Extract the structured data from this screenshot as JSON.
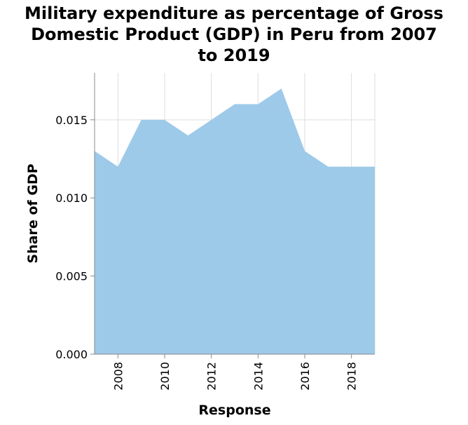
{
  "chart_data": {
    "type": "area",
    "title_lines": [
      "Military expenditure as percentage of Gross",
      "Domestic Product (GDP) in Peru from 2007",
      "to 2019"
    ],
    "xlabel": "Response",
    "ylabel": "Share of GDP",
    "x": [
      2007,
      2008,
      2009,
      2010,
      2011,
      2012,
      2013,
      2014,
      2015,
      2016,
      2017,
      2018,
      2019
    ],
    "values": [
      0.013,
      0.012,
      0.015,
      0.015,
      0.014,
      0.015,
      0.016,
      0.016,
      0.017,
      0.013,
      0.012,
      0.012,
      0.012
    ],
    "xlim": [
      2007,
      2019
    ],
    "ylim": [
      0,
      0.018
    ],
    "xticks": [
      2008,
      2010,
      2012,
      2014,
      2016,
      2018
    ],
    "xtick_labels": [
      "2008",
      "2010",
      "2012",
      "2014",
      "2016",
      "2018"
    ],
    "yticks": [
      0,
      0.005,
      0.01,
      0.015
    ],
    "ytick_labels": [
      "0.000",
      "0.005",
      "0.010",
      "0.015"
    ],
    "grid": true,
    "fill_color": "#9ecae9",
    "grid_color": "#dddddd",
    "axis_color": "#888888"
  }
}
